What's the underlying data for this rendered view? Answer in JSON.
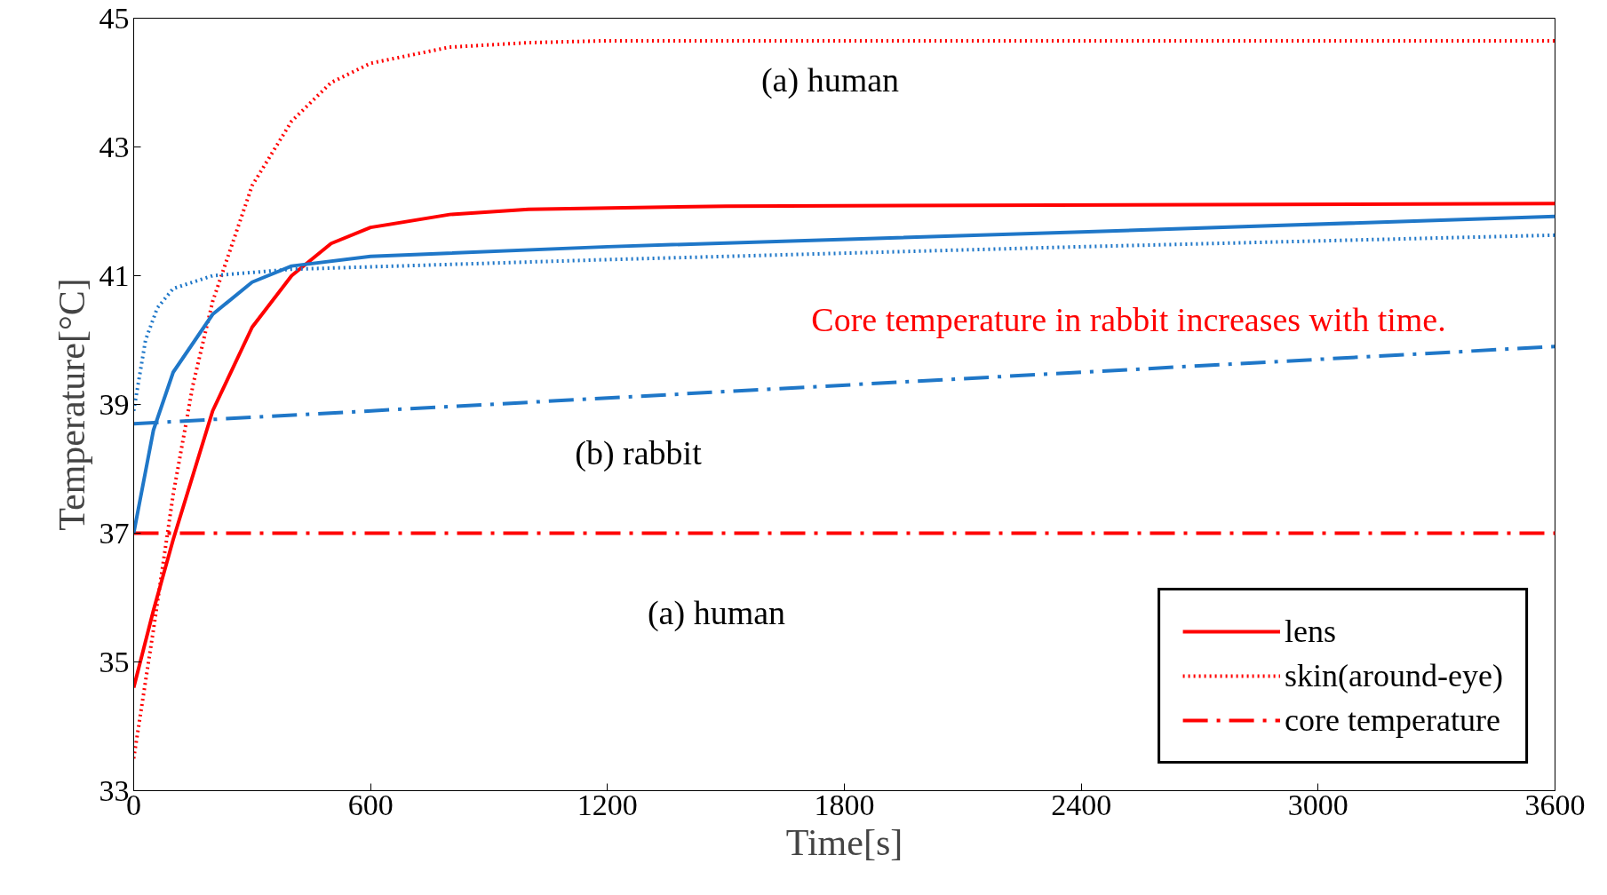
{
  "chart_data": {
    "type": "line",
    "xlabel": "Time[s]",
    "ylabel": "Temperature[°C]",
    "xlim": [
      0,
      3600
    ],
    "xticks": [
      0,
      600,
      1200,
      1800,
      2400,
      3000,
      3600
    ],
    "ylim": [
      33,
      45
    ],
    "yticks": [
      33,
      35,
      37,
      39,
      41,
      43,
      45
    ],
    "grid": false,
    "legend": "bottom right",
    "series": [
      {
        "name": "lens",
        "color": "#ff0000",
        "line_style": "solid",
        "x": [
          0,
          50,
          100,
          200,
          300,
          400,
          500,
          600,
          800,
          1000,
          1500,
          3600
        ],
        "values": [
          34.6,
          35.8,
          36.9,
          38.9,
          40.2,
          41.0,
          41.5,
          41.75,
          41.95,
          42.03,
          42.08,
          42.12
        ]
      },
      {
        "name": "skin(around-eye)",
        "color": "#ff0000",
        "line_style": "dotted",
        "x": [
          0,
          50,
          100,
          150,
          200,
          300,
          400,
          500,
          600,
          800,
          1000,
          1200,
          3600
        ],
        "values": [
          33.5,
          35.5,
          37.6,
          39.3,
          40.6,
          42.4,
          43.4,
          44.0,
          44.3,
          44.55,
          44.62,
          44.65,
          44.65
        ]
      },
      {
        "name": "core temperature",
        "color": "#ff0000",
        "line_style": "dashdot",
        "x": [
          0,
          3600
        ],
        "values": [
          37.0,
          37.0
        ]
      },
      {
        "color": "#1f77c8",
        "line_style": "solid",
        "x": [
          0,
          50,
          100,
          200,
          300,
          400,
          600,
          1200,
          2400,
          3600
        ],
        "values": [
          37.0,
          38.6,
          39.5,
          40.4,
          40.9,
          41.15,
          41.3,
          41.45,
          41.68,
          41.92
        ]
      },
      {
        "color": "#1f77c8",
        "line_style": "dotted",
        "x": [
          0,
          30,
          60,
          100,
          200,
          400,
          1200,
          2400,
          3600
        ],
        "values": [
          38.9,
          40.0,
          40.5,
          40.8,
          41.0,
          41.1,
          41.25,
          41.45,
          41.63
        ]
      },
      {
        "color": "#1f77c8",
        "line_style": "dashdot",
        "x": [
          0,
          3600
        ],
        "values": [
          38.7,
          39.9
        ]
      }
    ],
    "annotations": [
      "(a) human",
      "(b) rabbit",
      "(a) human",
      "Core temperature in rabbit increases with time."
    ]
  }
}
